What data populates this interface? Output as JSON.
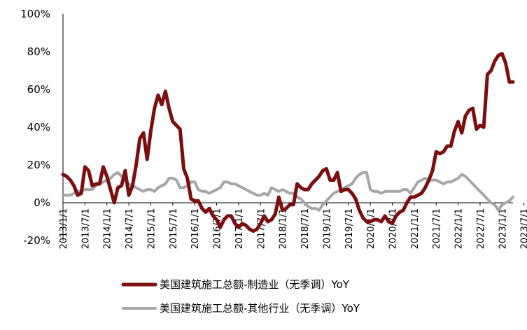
{
  "chart_data": {
    "type": "line",
    "title": "",
    "xlabel": "",
    "ylabel": "",
    "ylim": [
      -20,
      100
    ],
    "yticks": [
      "-20%",
      "0%",
      "20%",
      "40%",
      "60%",
      "80%",
      "100%"
    ],
    "ytick_values": [
      -20,
      0,
      20,
      40,
      60,
      80,
      100
    ],
    "xticks": [
      "2013/1/1",
      "2013/7/1",
      "2014/1/1",
      "2014/7/1",
      "2015/1/1",
      "2015/7/1",
      "2016/1/1",
      "2016/7/1",
      "2017/1/1",
      "2017/7/1",
      "2018/1/1",
      "2018/7/1",
      "2019/1/1",
      "2019/7/1",
      "2020/1/1",
      "2020/7/1",
      "2021/1/1",
      "2021/7/1",
      "2022/1/1",
      "2022/7/1",
      "2023/1/1",
      "2023/7/1"
    ],
    "x_start": "2013-01",
    "frequency": "monthly",
    "grid": false,
    "legend_position": "bottom",
    "series": [
      {
        "name": "美国建筑施工总额-制造业（无季调）YoY",
        "color": "#7b0e0e",
        "values": [
          15,
          14,
          12,
          9,
          4,
          5,
          19,
          17,
          9,
          10,
          10,
          19,
          14,
          7,
          0,
          8,
          9,
          17,
          4,
          9,
          20,
          34,
          37,
          23,
          38,
          50,
          57,
          52,
          59,
          50,
          43,
          41,
          39,
          18,
          13,
          2,
          1,
          1,
          -3,
          -5,
          -3,
          -7,
          -9,
          -13,
          -9,
          -7,
          -7,
          -11,
          -13,
          -11,
          -12,
          -14,
          -15,
          -14,
          -11,
          -7,
          -10,
          -9,
          -6,
          3,
          -4,
          -3,
          -1,
          -1,
          10,
          8,
          7,
          7,
          10,
          12,
          14,
          17,
          18,
          12,
          12,
          16,
          6,
          7,
          7,
          5,
          2,
          -4,
          -8,
          -10,
          -10,
          -9,
          -9,
          -10,
          -7,
          -10,
          -11,
          -7,
          -5,
          -4,
          0,
          3,
          3,
          4,
          5,
          8,
          12,
          17,
          27,
          26,
          27,
          30,
          30,
          38,
          43,
          37,
          46,
          49,
          50,
          39,
          41,
          40,
          68,
          70,
          75,
          78,
          79,
          74,
          64,
          64
        ]
      },
      {
        "name": "美国建筑施工总额-其他行业（无季调）YoY",
        "color": "#a6a6a6",
        "values": [
          4,
          4,
          4,
          5,
          6,
          6,
          7,
          7,
          7,
          9,
          10,
          11,
          12,
          13,
          15,
          16,
          14,
          12,
          10,
          9,
          8,
          7,
          6,
          7,
          7,
          6,
          8,
          9,
          10,
          13,
          13,
          12,
          8,
          8,
          9,
          11,
          11,
          7,
          6,
          6,
          5,
          6,
          7,
          8,
          11,
          11,
          10,
          10,
          9,
          8,
          7,
          6,
          5,
          4,
          4,
          5,
          4,
          8,
          7,
          6,
          7,
          6,
          5,
          5,
          3,
          2,
          0,
          -2,
          -3,
          -3,
          -4,
          -1,
          1,
          3,
          5,
          6,
          7,
          8,
          9,
          10,
          13,
          15,
          16,
          16,
          7,
          6,
          6,
          5,
          6,
          6,
          6,
          6,
          6,
          7,
          7,
          5,
          8,
          11,
          12,
          13,
          12,
          12,
          12,
          11,
          10,
          11,
          11,
          12,
          13,
          15,
          14,
          12,
          10,
          8,
          6,
          4,
          2,
          0,
          -1,
          -4,
          -1,
          0,
          1,
          3
        ]
      }
    ]
  }
}
